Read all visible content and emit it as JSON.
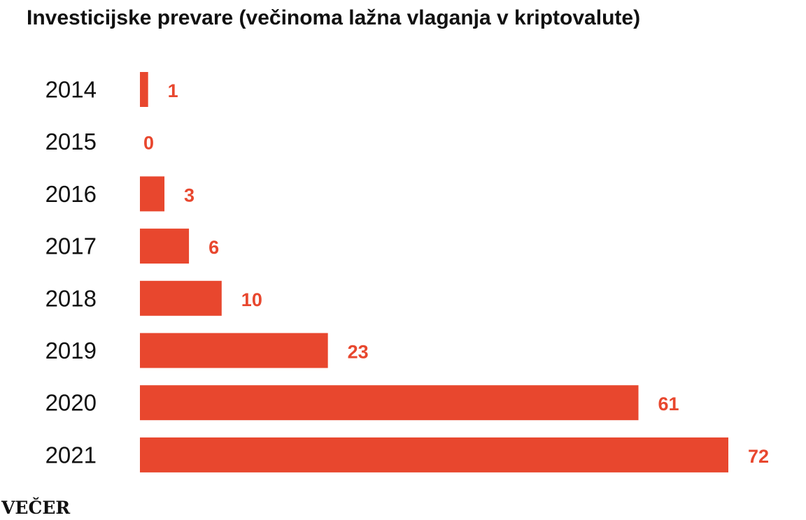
{
  "colors": {
    "bar": "#E8472E",
    "value_text": "#E8472E",
    "text": "#111111"
  },
  "chart_data": {
    "type": "bar",
    "orientation": "horizontal",
    "title": "Investicijske prevare (večinoma lažna vlaganja v kriptovalute)",
    "categories": [
      "2014",
      "2015",
      "2016",
      "2017",
      "2018",
      "2019",
      "2020",
      "2021"
    ],
    "values": [
      1,
      0,
      3,
      6,
      10,
      23,
      61,
      72
    ],
    "xlim": [
      0,
      72
    ],
    "grid": false,
    "legend": "none",
    "data_labels": true
  },
  "logo": {
    "text": "VEČER"
  }
}
